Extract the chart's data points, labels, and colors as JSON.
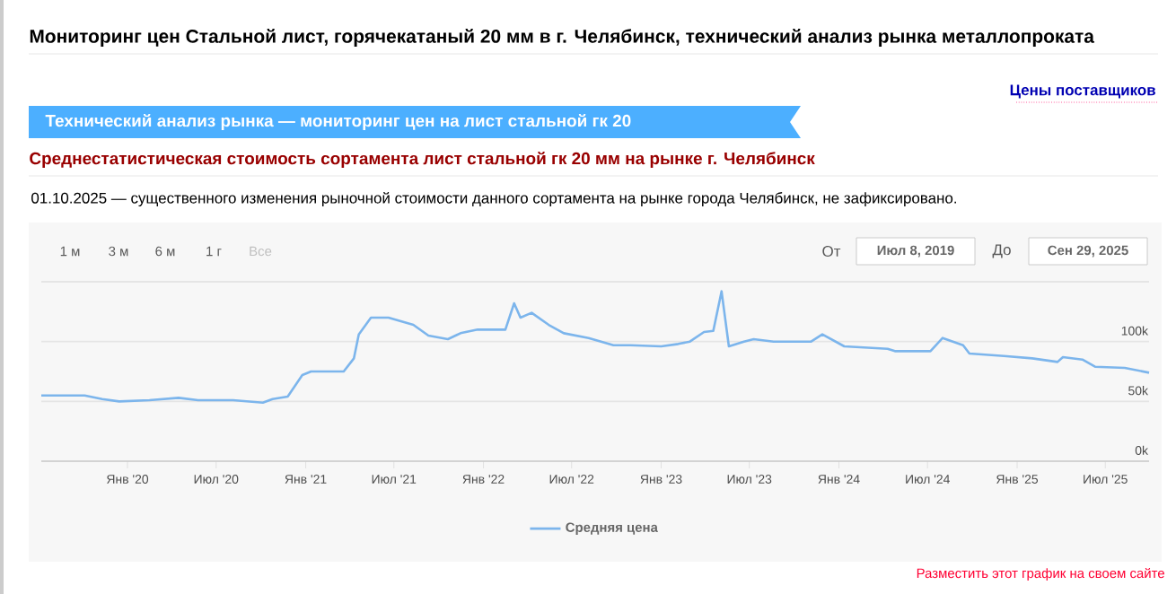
{
  "chart_data": {
    "type": "line",
    "title": "Мониторинг цен Стальной лист, горячекатаный 20 мм в г. Челябинск, технический анализ рынка металлопроката",
    "subtitle": "Среднестатистическая стоимость сортамента лист стальной гк 20 мм на рынке г. Челябинск",
    "annotations": [
      "Цены поставщиков",
      "Технический анализ рынка — мониторинг цен на лист стальной гк 20",
      "01.10.2025 — существенного изменения рыночной стоимости данного сортамента на рынке города Челябинск, не зафиксировано.",
      "1 м",
      "3 м",
      "6 м",
      "1 г",
      "Все",
      "От",
      "Июл 8, 2019",
      "До",
      "Сен 29, 2025",
      "Разместить этот график на своем сайте"
    ],
    "x": [
      "2019-07-08",
      "2019-10-05",
      "2019-11-10",
      "2019-12-15",
      "2020-02-15",
      "2020-04-15",
      "2020-05-25",
      "2020-08-05",
      "2020-10-05",
      "2020-10-25",
      "2020-11-25",
      "2020-12-25",
      "2021-01-12",
      "2021-03-20",
      "2021-04-10",
      "2021-04-20",
      "2021-05-15",
      "2021-06-20",
      "2021-08-10",
      "2021-09-10",
      "2021-10-20",
      "2021-11-15",
      "2021-12-20",
      "2022-02-15",
      "2022-03-05",
      "2022-03-18",
      "2022-04-10",
      "2022-05-15",
      "2022-06-15",
      "2022-08-05",
      "2022-09-25",
      "2022-10-30",
      "2023-01-01",
      "2023-02-05",
      "2023-03-01",
      "2023-03-30",
      "2023-04-18",
      "2023-05-05",
      "2023-05-20",
      "2023-06-20",
      "2023-07-10",
      "2023-08-20",
      "2023-11-05",
      "2023-11-28",
      "2024-01-12",
      "2024-04-10",
      "2024-04-25",
      "2024-07-07",
      "2024-08-01",
      "2024-09-12",
      "2024-09-25",
      "2024-12-05",
      "2025-02-01",
      "2025-03-25",
      "2025-04-05",
      "2025-05-15",
      "2025-06-10",
      "2025-08-10",
      "2025-09-29"
    ],
    "series": [
      {
        "name": "Средняя цена",
        "color": "#7cb5ec",
        "values": [
          55000,
          55000,
          52000,
          50000,
          51000,
          53000,
          51000,
          51000,
          49000,
          52000,
          54000,
          72000,
          75000,
          75000,
          86000,
          106000,
          120000,
          120000,
          114000,
          105000,
          102000,
          107000,
          110000,
          110000,
          132000,
          120000,
          124000,
          114000,
          107000,
          103000,
          97000,
          97000,
          96000,
          98000,
          100000,
          108000,
          109000,
          142000,
          96000,
          100000,
          102000,
          100000,
          100000,
          106000,
          96000,
          94000,
          92000,
          92000,
          103000,
          97000,
          90000,
          88000,
          86000,
          83000,
          87000,
          85000,
          79000,
          78000,
          74000
        ]
      }
    ],
    "xlim": [
      "2019-07-08",
      "2025-09-29"
    ],
    "xticks": [
      {
        "value": "2020-01-01",
        "label": "Янв '20"
      },
      {
        "value": "2020-07-01",
        "label": "Июл '20"
      },
      {
        "value": "2021-01-01",
        "label": "Янв '21"
      },
      {
        "value": "2021-07-01",
        "label": "Июл '21"
      },
      {
        "value": "2022-01-01",
        "label": "Янв '22"
      },
      {
        "value": "2022-07-01",
        "label": "Июл '22"
      },
      {
        "value": "2023-01-01",
        "label": "Янв '23"
      },
      {
        "value": "2023-07-01",
        "label": "Июл '23"
      },
      {
        "value": "2024-01-01",
        "label": "Янв '24"
      },
      {
        "value": "2024-07-01",
        "label": "Июл '24"
      },
      {
        "value": "2025-01-01",
        "label": "Янв '25"
      },
      {
        "value": "2025-07-01",
        "label": "Июл '25"
      }
    ],
    "ylim": [
      0,
      150000
    ],
    "yticks": [
      {
        "value": 0,
        "label": "0k"
      },
      {
        "value": 50000,
        "label": "50k"
      },
      {
        "value": 100000,
        "label": "100k"
      },
      {
        "value": 150000,
        "label": null
      }
    ],
    "grid": "y",
    "legend": "bottom",
    "marker": "none",
    "line_style": "solid"
  }
}
